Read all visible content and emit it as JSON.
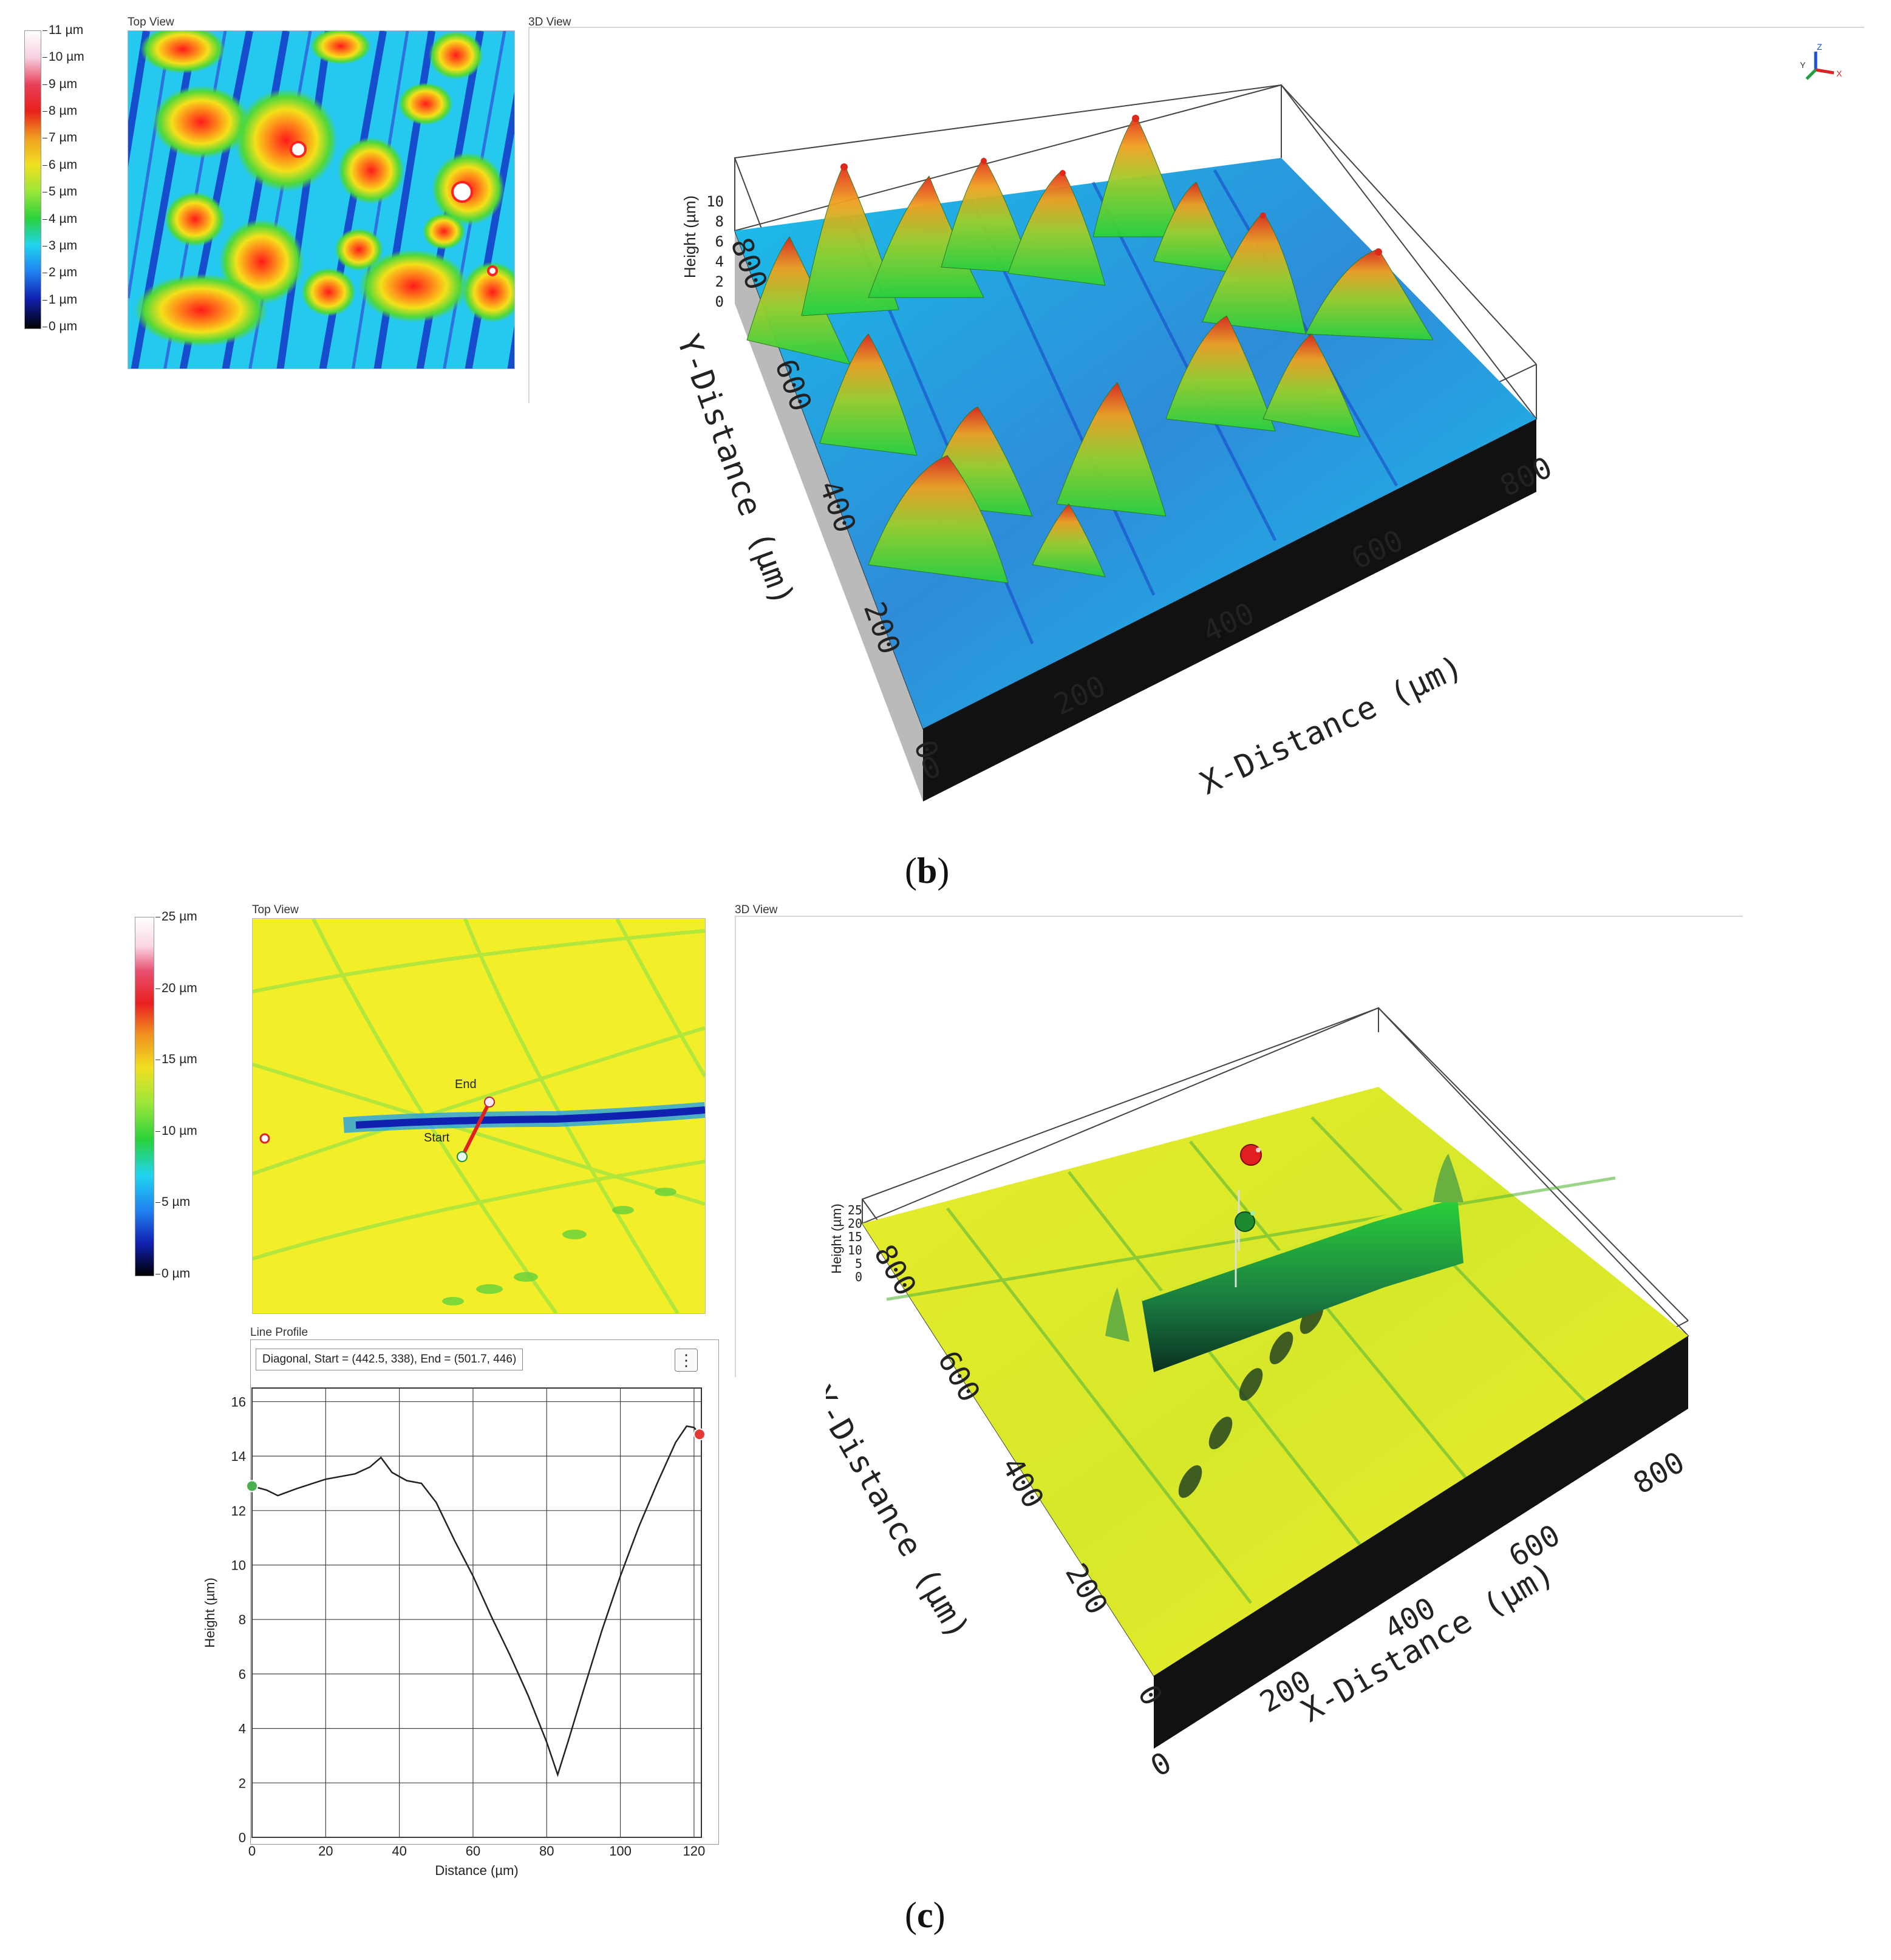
{
  "panel_b": {
    "top_view_title": "Top View",
    "view3d_title": "3D View",
    "colorbar_ticks": [
      "11 µm",
      "10 µm",
      "9 µm",
      "8 µm",
      "7 µm",
      "6 µm",
      "5 µm",
      "4 µm",
      "3 µm",
      "2 µm",
      "1 µm",
      "0 µm"
    ],
    "z_label": "Height (µm)",
    "z_ticks": [
      "10",
      "8",
      "6",
      "4",
      "2",
      "0"
    ],
    "x_label": "X-Distance (µm)",
    "x_ticks": [
      "0",
      "200",
      "400",
      "600",
      "800"
    ],
    "y_label": "Y-Distance (µm)",
    "y_ticks": [
      "0",
      "200",
      "400",
      "600",
      "800"
    ],
    "caption_letter": "b"
  },
  "panel_c": {
    "top_view_title": "Top View",
    "view3d_title": "3D View",
    "colorbar_ticks": [
      "25 µm",
      "20 µm",
      "15 µm",
      "10 µm",
      "5 µm",
      "0 µm"
    ],
    "marker_end": "End",
    "marker_start": "Start",
    "line_profile_title": "Line Profile",
    "line_profile_info": "Diagonal, Start = (442.5, 338), End = (501.7, 446)",
    "z_label": "Height (µm)",
    "z_ticks": [
      "25",
      "20",
      "15",
      "10",
      "5",
      "0"
    ],
    "x_label": "X-Distance (µm)",
    "x_ticks": [
      "0",
      "200",
      "400",
      "600",
      "800"
    ],
    "y_label": "Y-Distance (µm)",
    "y_ticks": [
      "0",
      "200",
      "400",
      "600",
      "800"
    ],
    "caption_letter": "c"
  },
  "chart_data": {
    "type": "line",
    "xlabel": "Distance (µm)",
    "ylabel": "Height (µm)",
    "xlim": [
      0,
      122
    ],
    "ylim": [
      0,
      16.5
    ],
    "x_ticks": [
      0,
      20,
      40,
      60,
      80,
      100,
      120
    ],
    "y_ticks": [
      0,
      2,
      4,
      6,
      8,
      10,
      12,
      14,
      16
    ],
    "grid": true,
    "series": [
      {
        "x": [
          0,
          4,
          7,
          12,
          20,
          28,
          32,
          35,
          38,
          42,
          46,
          50,
          55,
          60,
          65,
          70,
          75,
          80,
          83,
          86,
          90,
          95,
          100,
          105,
          110,
          115,
          118,
          120,
          121.5
        ],
        "y": [
          12.9,
          12.75,
          12.55,
          12.8,
          13.15,
          13.35,
          13.6,
          13.95,
          13.4,
          13.1,
          13.0,
          12.3,
          10.9,
          9.6,
          8.1,
          6.7,
          5.2,
          3.5,
          2.3,
          3.6,
          5.4,
          7.6,
          9.6,
          11.4,
          13.0,
          14.5,
          15.1,
          15.05,
          14.8
        ]
      }
    ],
    "start_marker": {
      "x": 0,
      "y": 12.9,
      "color": "#4caf50"
    },
    "end_marker": {
      "x": 121.5,
      "y": 14.8,
      "color": "#e53935"
    }
  }
}
